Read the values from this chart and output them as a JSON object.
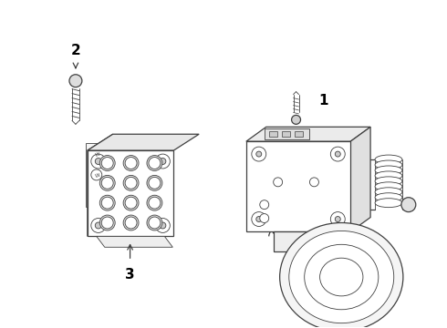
{
  "background_color": "#ffffff",
  "line_color": "#404040",
  "label_color": "#000000",
  "figure_width": 4.9,
  "figure_height": 3.6,
  "dpi": 100
}
